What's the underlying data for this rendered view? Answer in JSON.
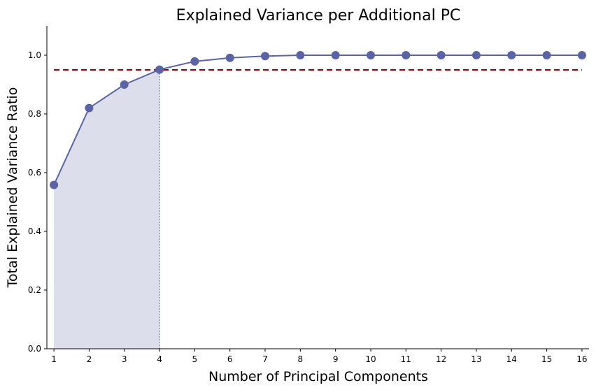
{
  "chart_data": {
    "type": "line",
    "title": "Explained Variance per Additional PC",
    "xlabel": "Number of Principal Components",
    "ylabel": "Total Explained Variance Ratio",
    "x": [
      1,
      2,
      3,
      4,
      5,
      6,
      7,
      8,
      9,
      10,
      11,
      12,
      13,
      14,
      15,
      16
    ],
    "series": [
      {
        "values": [
          0.558,
          0.82,
          0.9,
          0.951,
          0.979,
          0.991,
          0.997,
          1.0,
          1.0,
          1.0,
          1.0,
          1.0,
          1.0,
          1.0,
          1.0,
          1.0
        ]
      }
    ],
    "x_ticks": [
      "1",
      "2",
      "3",
      "4",
      "5",
      "6",
      "7",
      "8",
      "9",
      "10",
      "11",
      "12",
      "13",
      "14",
      "15",
      "16"
    ],
    "y_ticks": [
      "0.0",
      "0.2",
      "0.4",
      "0.6",
      "0.8",
      "1.0"
    ],
    "xlim": [
      0.8,
      16.2
    ],
    "ylim": [
      0.0,
      1.1
    ],
    "threshold": 0.95,
    "cutoff_component": 4,
    "grid": false,
    "colors": {
      "line": "#5a63a8",
      "marker": "#5a63a8",
      "fill": "#dcdeec",
      "threshold": "#8b0000",
      "cutoff": "#8a91c4"
    }
  }
}
